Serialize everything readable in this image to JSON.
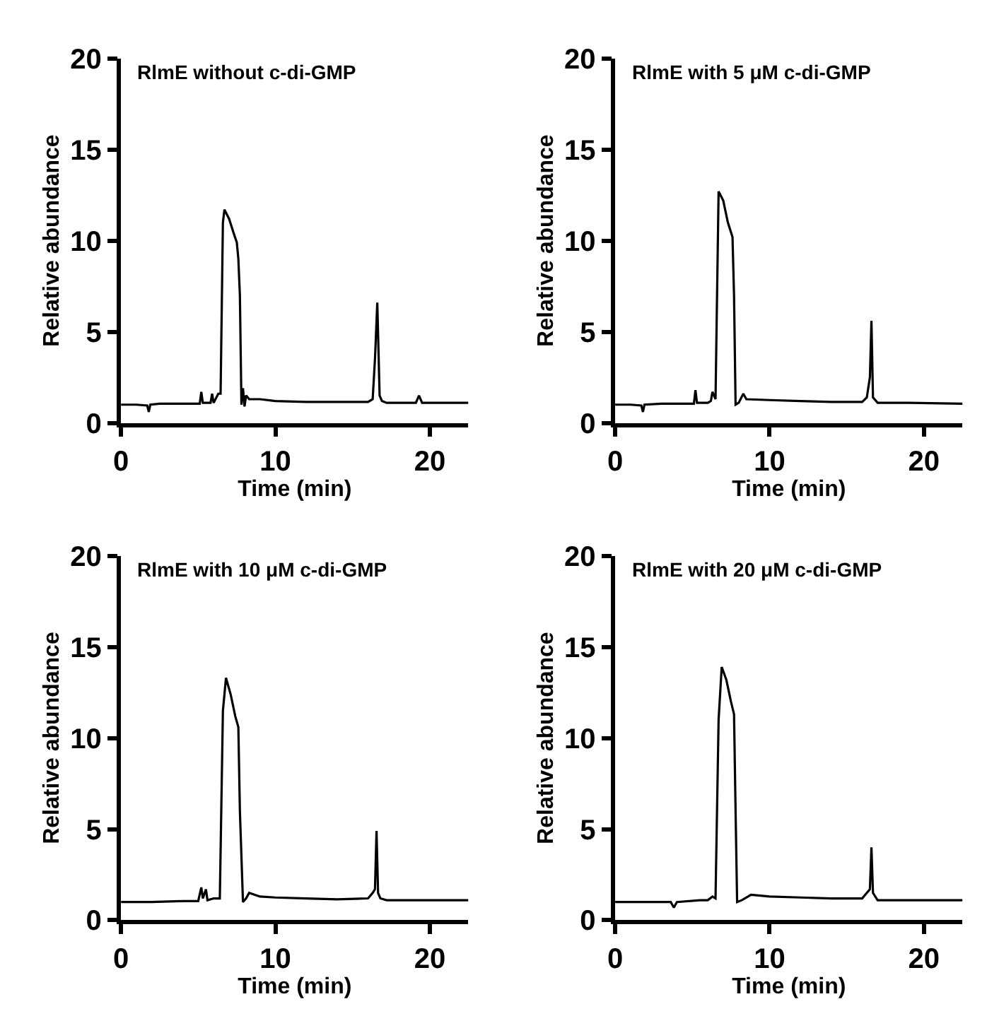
{
  "chart_data": [
    {
      "type": "line",
      "title": "RlmE without c-di-GMP",
      "xlabel": "Time (min)",
      "ylabel": "Relative abundance",
      "xlim": [
        0,
        22.5
      ],
      "ylim": [
        0,
        20
      ],
      "xticks": [
        0,
        10,
        20
      ],
      "yticks": [
        0,
        5,
        10,
        15,
        20
      ],
      "marker": "none",
      "line_style": "solid",
      "series": [
        {
          "color": "#000000",
          "x": [
            0,
            1.0,
            1.7,
            1.8,
            1.9,
            2.5,
            3.5,
            4.5,
            5.1,
            5.2,
            5.3,
            5.8,
            5.9,
            6.0,
            6.3,
            6.45,
            6.6,
            6.7,
            7.0,
            7.3,
            7.5,
            7.6,
            7.7,
            7.8,
            7.9,
            8.0,
            8.1,
            8.3,
            9.0,
            10,
            12,
            14,
            16.0,
            16.3,
            16.45,
            16.6,
            16.75,
            16.9,
            17.2,
            19.1,
            19.3,
            19.5,
            21,
            22.5
          ],
          "values": [
            1.0,
            1.0,
            0.95,
            0.6,
            1.0,
            1.05,
            1.05,
            1.05,
            1.05,
            1.7,
            1.1,
            1.1,
            1.6,
            1.1,
            1.6,
            1.6,
            11.0,
            11.7,
            11.2,
            10.4,
            9.9,
            9.0,
            7.0,
            1.0,
            1.9,
            0.9,
            1.5,
            1.3,
            1.3,
            1.2,
            1.15,
            1.15,
            1.15,
            1.3,
            3.5,
            6.6,
            1.5,
            1.2,
            1.1,
            1.1,
            1.5,
            1.1,
            1.1,
            1.1
          ]
        }
      ]
    },
    {
      "type": "line",
      "title": "RlmE with 5 μM c-di-GMP",
      "xlabel": "Time (min)",
      "ylabel": "Relative abundance",
      "xlim": [
        0,
        22.5
      ],
      "ylim": [
        0,
        20
      ],
      "xticks": [
        0,
        10,
        20
      ],
      "yticks": [
        0,
        5,
        10,
        15,
        20
      ],
      "marker": "none",
      "line_style": "solid",
      "series": [
        {
          "color": "#000000",
          "x": [
            0,
            1.0,
            1.7,
            1.8,
            1.9,
            3,
            4.5,
            5.1,
            5.2,
            5.3,
            6.0,
            6.2,
            6.3,
            6.5,
            6.7,
            7.0,
            7.3,
            7.6,
            7.7,
            7.8,
            8.0,
            8.3,
            8.5,
            10,
            12,
            14,
            16.0,
            16.3,
            16.5,
            16.6,
            16.7,
            17.0,
            19,
            22.5
          ],
          "values": [
            1.0,
            1.0,
            0.95,
            0.6,
            1.0,
            1.05,
            1.05,
            1.05,
            1.8,
            1.1,
            1.1,
            1.2,
            1.7,
            1.3,
            12.7,
            12.2,
            11.0,
            10.2,
            7.0,
            1.0,
            1.1,
            1.6,
            1.3,
            1.25,
            1.2,
            1.15,
            1.15,
            1.4,
            2.5,
            5.6,
            1.4,
            1.1,
            1.1,
            1.05
          ]
        }
      ]
    },
    {
      "type": "line",
      "title": "RlmE with 10 μM c-di-GMP",
      "xlabel": "Time (min)",
      "ylabel": "Relative abundance",
      "xlim": [
        0,
        22.5
      ],
      "ylim": [
        0,
        20
      ],
      "xticks": [
        0,
        10,
        20
      ],
      "yticks": [
        0,
        5,
        10,
        15,
        20
      ],
      "marker": "none",
      "line_style": "solid",
      "series": [
        {
          "color": "#000000",
          "x": [
            0,
            2,
            4,
            5.0,
            5.2,
            5.3,
            5.5,
            5.6,
            6.0,
            6.4,
            6.6,
            6.8,
            7.1,
            7.4,
            7.6,
            7.7,
            7.9,
            8.1,
            8.3,
            9,
            10,
            12,
            14,
            16.0,
            16.3,
            16.45,
            16.55,
            16.65,
            16.8,
            17.2,
            20,
            22.5
          ],
          "values": [
            1.0,
            1.0,
            1.05,
            1.05,
            1.8,
            1.2,
            1.7,
            1.1,
            1.2,
            1.2,
            11.5,
            13.3,
            12.4,
            11.2,
            10.6,
            6.0,
            1.0,
            1.2,
            1.5,
            1.3,
            1.25,
            1.2,
            1.15,
            1.2,
            1.5,
            1.7,
            4.9,
            1.5,
            1.2,
            1.1,
            1.1,
            1.1
          ]
        }
      ]
    },
    {
      "type": "line",
      "title": "RlmE with 20 μM c-di-GMP",
      "xlabel": "Time (min)",
      "ylabel": "Relative abundance",
      "xlim": [
        0,
        22.5
      ],
      "ylim": [
        0,
        20
      ],
      "xticks": [
        0,
        10,
        20
      ],
      "yticks": [
        0,
        5,
        10,
        15,
        20
      ],
      "marker": "none",
      "line_style": "solid",
      "series": [
        {
          "color": "#000000",
          "x": [
            0,
            2,
            3.6,
            3.8,
            4.0,
            5.5,
            6.0,
            6.3,
            6.5,
            6.7,
            6.9,
            7.2,
            7.5,
            7.7,
            7.8,
            7.9,
            8.2,
            8.8,
            10,
            12,
            14,
            16.0,
            16.3,
            16.5,
            16.6,
            16.7,
            17.0,
            20,
            22.5
          ],
          "values": [
            1.0,
            1.0,
            1.0,
            0.7,
            1.0,
            1.1,
            1.1,
            1.3,
            1.2,
            11.0,
            13.9,
            13.2,
            12.0,
            11.3,
            6.0,
            1.0,
            1.1,
            1.4,
            1.3,
            1.25,
            1.2,
            1.2,
            1.5,
            1.7,
            4.0,
            1.5,
            1.1,
            1.1,
            1.1
          ]
        }
      ]
    }
  ]
}
